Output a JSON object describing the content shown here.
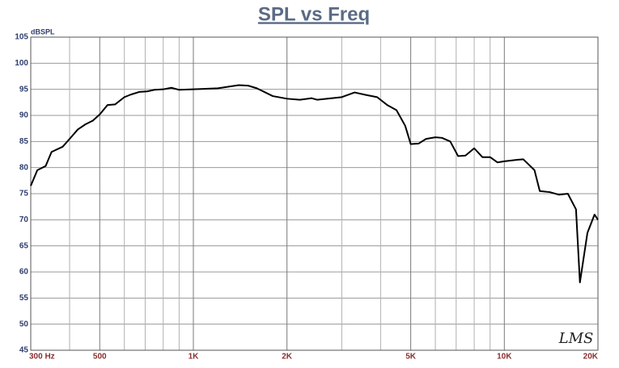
{
  "chart_data": {
    "type": "line",
    "title": "SPL vs Freq",
    "y_label": "dBSPL",
    "watermark": "LMS",
    "x_scale": "log",
    "xlim": [
      300,
      20000
    ],
    "ylim": [
      45,
      105
    ],
    "xticks": [
      {
        "value": 300,
        "label": "300  Hz"
      },
      500,
      {
        "value": 1000,
        "label": "1K"
      },
      {
        "value": 2000,
        "label": "2K"
      },
      {
        "value": 5000,
        "label": "5K"
      },
      {
        "value": 10000,
        "label": "10K"
      },
      {
        "value": 20000,
        "label": "20K"
      }
    ],
    "x_minor_ticks": [
      400,
      600,
      700,
      800,
      900,
      3000,
      4000,
      6000,
      7000,
      8000,
      9000
    ],
    "yticks": [
      45,
      50,
      55,
      60,
      65,
      70,
      75,
      80,
      85,
      90,
      95,
      100,
      105
    ],
    "grid": true,
    "series": [
      {
        "name": "SPL",
        "color": "#000000",
        "x": [
          300,
          315,
          335,
          350,
          380,
          400,
          425,
          450,
          475,
          500,
          530,
          560,
          600,
          630,
          670,
          710,
          750,
          800,
          850,
          900,
          1000,
          1200,
          1400,
          1500,
          1600,
          1800,
          2000,
          2200,
          2400,
          2500,
          2800,
          3000,
          3300,
          3600,
          3900,
          4200,
          4500,
          4800,
          5000,
          5300,
          5600,
          6000,
          6300,
          6700,
          7100,
          7500,
          8000,
          8500,
          9000,
          9500,
          10000,
          11000,
          11500,
          12500,
          13000,
          14000,
          15000,
          16000,
          17000,
          17500,
          18500,
          19500,
          20000
        ],
        "values": [
          76.5,
          79.5,
          80.3,
          83,
          84,
          85.5,
          87.3,
          88.3,
          89,
          90.2,
          92,
          92.1,
          93.5,
          94,
          94.5,
          94.6,
          94.9,
          95,
          95.3,
          94.9,
          95,
          95.2,
          95.8,
          95.7,
          95.2,
          93.7,
          93.2,
          93,
          93.3,
          93,
          93.3,
          93.5,
          94.4,
          93.9,
          93.5,
          92,
          91,
          88,
          84.5,
          84.6,
          85.5,
          85.8,
          85.7,
          85,
          82.2,
          82.3,
          83.7,
          82,
          82,
          81,
          81.2,
          81.5,
          81.6,
          79.5,
          75.5,
          75.3,
          74.8,
          75,
          72,
          58,
          67.5,
          71,
          70
        ]
      }
    ]
  }
}
